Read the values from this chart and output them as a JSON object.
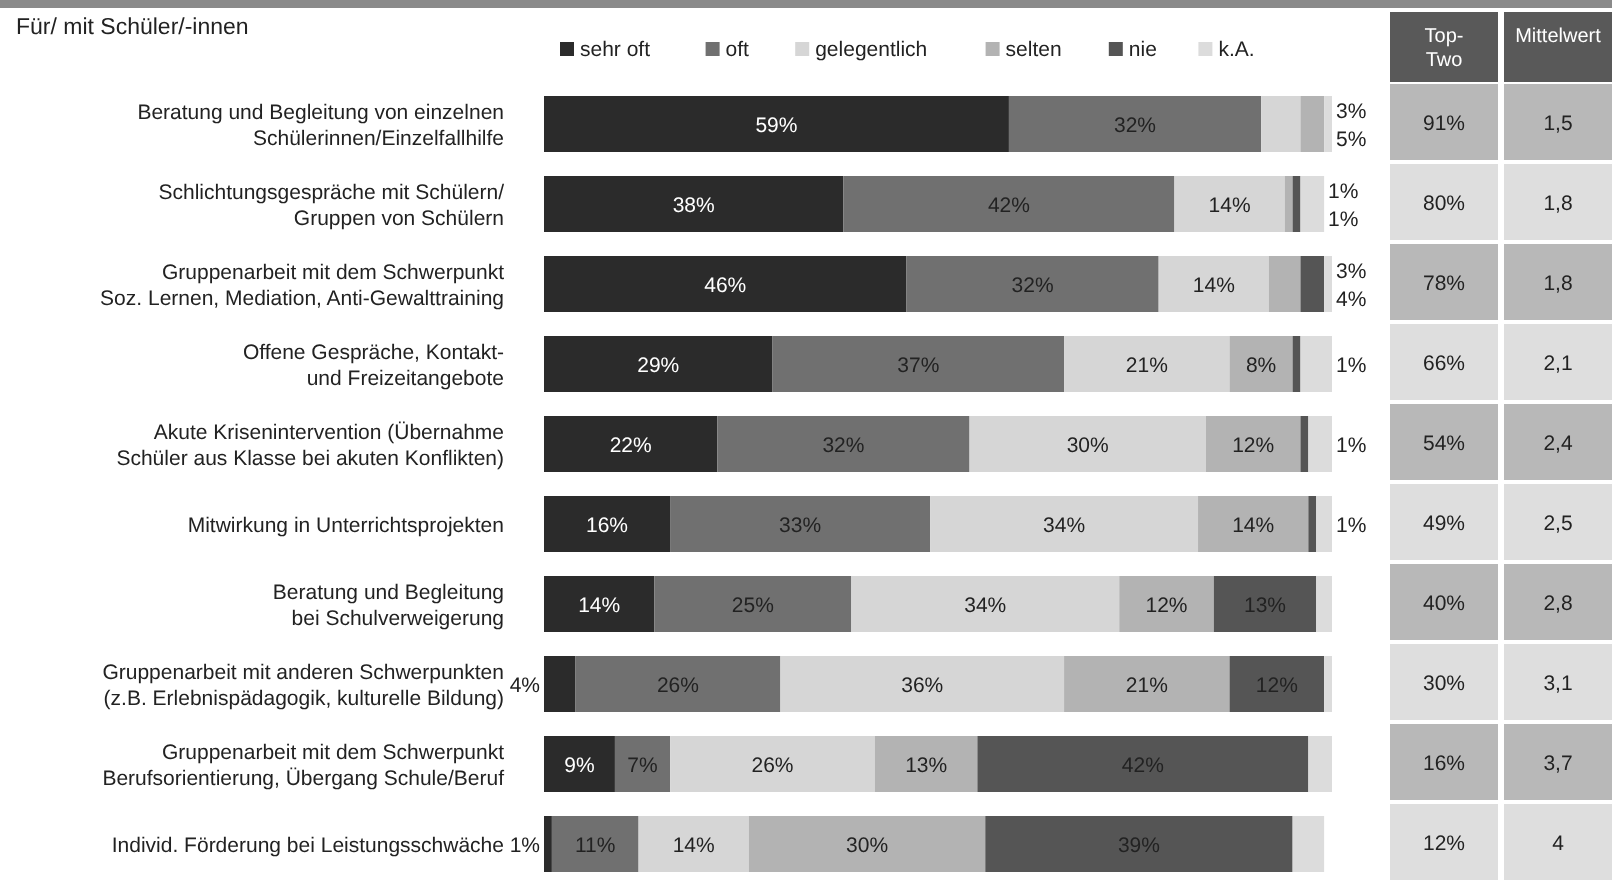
{
  "chart_data": {
    "type": "bar",
    "orientation": "horizontal",
    "stacked": true,
    "title": "Für/ mit Schüler/-innen",
    "legend": "top",
    "categories": [
      "Beratung und Begleitung von einzelnen\nSchülerinnen/Einzelfallhilfe",
      "Schlichtungsgespräche mit Schülern/\nGruppen von Schülern",
      "Gruppenarbeit mit dem Schwerpunkt\nSoz. Lernen, Mediation, Anti-Gewalttraining",
      "Offene Gespräche, Kontakt-\nund Freizeitangebote",
      "Akute Krisenintervention (Übernahme\nSchüler aus Klasse bei akuten Konflikten)",
      "Mitwirkung in Unterrichtsprojekten",
      "Beratung und Begleitung\nbei Schulverweigerung",
      "Gruppenarbeit mit anderen Schwerpunkten\n(z.B. Erlebnispädagogik, kulturelle Bildung)",
      "Gruppenarbeit mit dem Schwerpunkt\nBerufsorientierung, Übergang Schule/Beruf",
      "Individ. Förderung bei Leistungsschwäche"
    ],
    "series": [
      {
        "name": "sehr oft",
        "color": "#2b2b2b",
        "values": [
          59,
          38,
          46,
          29,
          22,
          16,
          14,
          4,
          9,
          1
        ],
        "value_labels": [
          "59%",
          "38%",
          "46%",
          "29%",
          "22%",
          "16%",
          "14%",
          "4%",
          "9%",
          "1%"
        ]
      },
      {
        "name": "oft",
        "color": "#707070",
        "values": [
          32,
          42,
          32,
          37,
          32,
          33,
          25,
          26,
          7,
          11
        ],
        "value_labels": [
          "32%",
          "42%",
          "32%",
          "37%",
          "32%",
          "33%",
          "25%",
          "26%",
          "7%",
          "11%"
        ]
      },
      {
        "name": "gelegentlich",
        "color": "#d6d6d6",
        "values": [
          5,
          14,
          14,
          21,
          30,
          34,
          34,
          36,
          26,
          14
        ],
        "value_labels": [
          "5%",
          "14%",
          "14%",
          "21%",
          "30%",
          "34%",
          "34%",
          "36%",
          "26%",
          "14%"
        ]
      },
      {
        "name": "selten",
        "color": "#b3b3b3",
        "values": [
          3,
          1,
          4,
          8,
          12,
          14,
          12,
          21,
          13,
          30
        ],
        "value_labels": [
          "3%",
          "1%",
          "4%",
          "8%",
          "12%",
          "14%",
          "12%",
          "21%",
          "13%",
          "30%"
        ]
      },
      {
        "name": "nie",
        "color": "#555555",
        "values": [
          null,
          1,
          3,
          1,
          1,
          1,
          13,
          12,
          42,
          39
        ],
        "value_labels": [
          null,
          "1%",
          "3%",
          "1%",
          "1%",
          "1%",
          "13%",
          "12%",
          "42%",
          "39%"
        ]
      },
      {
        "name": "k.A.",
        "color": "#dcdcdc",
        "values": [
          1,
          3,
          1,
          4,
          3,
          2,
          2,
          1,
          3,
          4
        ]
      }
    ],
    "annotations": [
      "Top-Two",
      "Mittelwert",
      "91%",
      "1,5",
      "80%",
      "1,8",
      "78%",
      "1,8",
      "66%",
      "2,1",
      "54%",
      "2,4",
      "49%",
      "2,5",
      "40%",
      "2,8",
      "30%",
      "3,1",
      "16%",
      "3,7",
      "12%",
      "4"
    ]
  }
}
